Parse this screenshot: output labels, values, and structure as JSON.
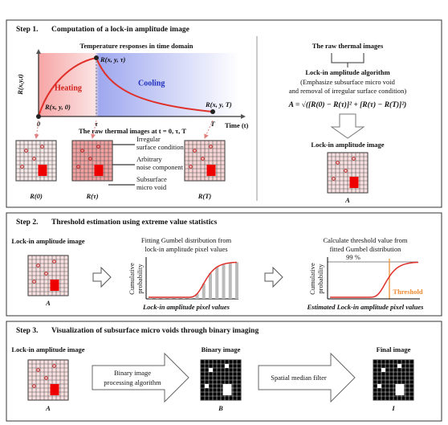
{
  "step1": {
    "label": "Step 1.",
    "heading": "Computation of a lock-in amplitude image",
    "chart_title": "Temperature responses in time domain",
    "y_axis": "R(x,y,t)",
    "x_axis": "Time (t)",
    "x_ticks": [
      "0",
      "τ",
      "T"
    ],
    "point_start": "R(x, y, 0)",
    "point_tau": "R(x, y, τ)",
    "point_end": "R(x, y, T)",
    "heating": "Heating",
    "cooling": "Cooling",
    "raw_caption": "The raw thermal images at t = 0, τ, T",
    "images": [
      "R(0)",
      "R(τ)",
      "R(T)"
    ],
    "annotations": [
      [
        "Irregular",
        "surface condition"
      ],
      [
        "Arbitrary",
        "noise component"
      ],
      [
        "Subsurface",
        "micro void"
      ]
    ],
    "right_title": "The raw thermal images",
    "algorithm": "Lock-in amplitude algorithm",
    "algorithm_note": [
      "(Emphasize subsurface micro void",
      "and removal of irregular surface condition)"
    ],
    "formula": "A = √([R(0) − R(τ)]² + [R(τ) − R(T)]²)",
    "result_title": "Lock-in amplitude image",
    "result_label": "A"
  },
  "step2": {
    "label": "Step 2.",
    "heading": "Threshold estimation using extreme value statistics",
    "input_title": "Lock-in amplitude image",
    "input_label": "A",
    "fit_title": [
      "Fitting Gumbel distribution  from",
      "lock-in amplitude pixel values"
    ],
    "fit_y_axis": [
      "Cumulative",
      "probability"
    ],
    "fit_x_axis": "Lock-in amplitude pixel values",
    "calc_title": [
      "Calculate threshold value from",
      "fitted Gumbel distribution"
    ],
    "calc_y_axis": [
      "Cumulative",
      "probability"
    ],
    "percent": "99 %",
    "threshold": "Threshold",
    "calc_x_axis": "Estimated Lock-in amplitude pixel values"
  },
  "step3": {
    "label": "Step 3.",
    "heading": "Visualization of subsurface micro voids through binary imaging",
    "input_title": "Lock-in amplitude image",
    "input_label": "A",
    "process": [
      "Binary image",
      "processing algorithm"
    ],
    "binary_title": "Binary image",
    "binary_label": "B",
    "filter": "Spatial median filter",
    "final_title": "Final image",
    "final_label": "I"
  }
}
